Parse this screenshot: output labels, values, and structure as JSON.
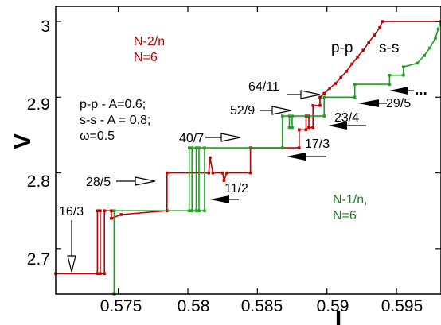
{
  "chart_data": {
    "type": "line",
    "title": "",
    "xlabel": "I",
    "ylabel": "V",
    "xlim": [
      0.5705,
      0.5982
    ],
    "ylim": [
      2.64,
      3.02
    ],
    "x_ticks": [
      0.575,
      0.58,
      0.585,
      0.59,
      0.595
    ],
    "x_tick_labels": [
      "0.575",
      "0.58",
      "0.585",
      "0.59",
      "0.595"
    ],
    "y_ticks": [
      2.7,
      2.8,
      2.9,
      3.0
    ],
    "y_tick_labels": [
      "2.7",
      "2.8",
      "2.9",
      "3"
    ],
    "grid": false,
    "series": [
      {
        "name": "p-p",
        "color": "#c00000",
        "points": [
          [
            0.5705,
            2.667
          ],
          [
            0.5735,
            2.667
          ],
          [
            0.5735,
            2.75
          ],
          [
            0.5737,
            2.75
          ],
          [
            0.5737,
            2.667
          ],
          [
            0.574,
            2.667
          ],
          [
            0.574,
            2.75
          ],
          [
            0.5745,
            2.75
          ],
          [
            0.5745,
            2.74
          ],
          [
            0.5752,
            2.745
          ],
          [
            0.5785,
            2.75
          ],
          [
            0.5785,
            2.8
          ],
          [
            0.5815,
            2.8
          ],
          [
            0.5816,
            2.82
          ],
          [
            0.5818,
            2.8
          ],
          [
            0.5825,
            2.8
          ],
          [
            0.5826,
            2.79
          ],
          [
            0.5828,
            2.8
          ],
          [
            0.5845,
            2.8
          ],
          [
            0.5845,
            2.833
          ],
          [
            0.588,
            2.833
          ],
          [
            0.588,
            2.857
          ],
          [
            0.5885,
            2.857
          ],
          [
            0.5885,
            2.875
          ],
          [
            0.5887,
            2.875
          ],
          [
            0.5887,
            2.86
          ],
          [
            0.589,
            2.86
          ],
          [
            0.589,
            2.889
          ],
          [
            0.5895,
            2.889
          ],
          [
            0.5895,
            2.9
          ],
          [
            0.5898,
            2.905
          ],
          [
            0.5902,
            2.912
          ],
          [
            0.5906,
            2.918
          ],
          [
            0.591,
            2.926
          ],
          [
            0.5914,
            2.934
          ],
          [
            0.5918,
            2.944
          ],
          [
            0.5922,
            2.953
          ],
          [
            0.5926,
            2.962
          ],
          [
            0.593,
            2.972
          ],
          [
            0.5934,
            2.982
          ],
          [
            0.5938,
            2.992
          ],
          [
            0.594,
            3.0
          ],
          [
            0.5982,
            3.0
          ]
        ]
      },
      {
        "name": "s-s",
        "color": "#1fa01f",
        "points": [
          [
            0.5747,
            2.64
          ],
          [
            0.5747,
            2.75
          ],
          [
            0.5812,
            2.75
          ],
          [
            0.5812,
            2.833
          ],
          [
            0.5808,
            2.833
          ],
          [
            0.5808,
            2.75
          ],
          [
            0.5806,
            2.75
          ],
          [
            0.5806,
            2.833
          ],
          [
            0.5803,
            2.833
          ],
          [
            0.5803,
            2.75
          ],
          [
            0.5801,
            2.75
          ],
          [
            0.5801,
            2.833
          ],
          [
            0.5868,
            2.833
          ],
          [
            0.5868,
            2.875
          ],
          [
            0.5873,
            2.875
          ],
          [
            0.5873,
            2.86
          ],
          [
            0.5875,
            2.86
          ],
          [
            0.5875,
            2.875
          ],
          [
            0.5898,
            2.875
          ],
          [
            0.5898,
            2.9
          ],
          [
            0.592,
            2.9
          ],
          [
            0.592,
            2.917
          ],
          [
            0.5945,
            2.917
          ],
          [
            0.5945,
            2.929
          ],
          [
            0.5955,
            2.929
          ],
          [
            0.5955,
            2.94
          ],
          [
            0.5965,
            2.945
          ],
          [
            0.597,
            2.955
          ],
          [
            0.5974,
            2.965
          ],
          [
            0.5978,
            2.978
          ],
          [
            0.598,
            2.99
          ],
          [
            0.5982,
            3.0
          ]
        ]
      }
    ],
    "annotations": {
      "top_left": [
        "N-2/n",
        "N=6"
      ],
      "params": [
        "p-p - A=0.6;",
        "s-s - A = 0.8;",
        "ω=0.5"
      ],
      "bottom_right": [
        "N-1/n,",
        "N=6"
      ],
      "curve_labels": [
        "p-p",
        "s-s"
      ],
      "pp_ratios": [
        "16/3",
        "28/5",
        "40/7",
        "52/9",
        "64/11"
      ],
      "ss_ratios": [
        "11/2",
        "17/3",
        "23/4",
        "29/5",
        "..."
      ]
    }
  }
}
